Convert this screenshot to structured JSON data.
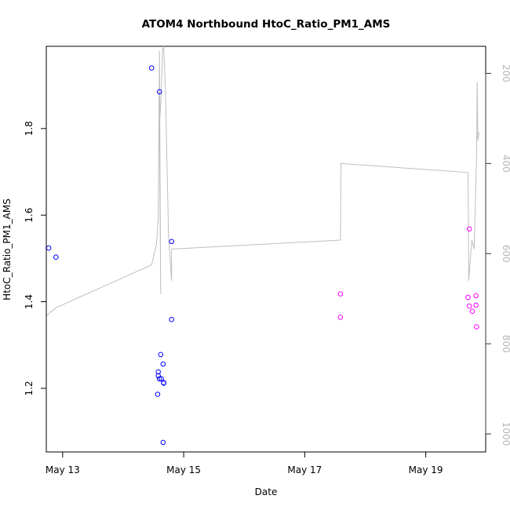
{
  "chart_data": {
    "type": "scatter",
    "title": "ATOM4 Northbound HtoC_Ratio_PM1_AMS",
    "xlabel": "Date",
    "ylabel": "HtoC_Ratio_PM1_AMS",
    "xlim": [
      12.73,
      19.99
    ],
    "ylim": [
      1.053,
      1.99
    ],
    "y2lim": [
      1040,
      140
    ],
    "x_ticks": [
      {
        "label": "May 13",
        "value": 13
      },
      {
        "label": "May 15",
        "value": 15
      },
      {
        "label": "May 17",
        "value": 17
      },
      {
        "label": "May 19",
        "value": 19
      }
    ],
    "y_ticks": [
      {
        "label": "1.2",
        "value": 1.2
      },
      {
        "label": "1.4",
        "value": 1.4
      },
      {
        "label": "1.6",
        "value": 1.6
      },
      {
        "label": "1.8",
        "value": 1.8
      }
    ],
    "y2_ticks": [
      {
        "label": "200",
        "value": 200
      },
      {
        "label": "400",
        "value": 400
      },
      {
        "label": "600",
        "value": 600
      },
      {
        "label": "800",
        "value": 800
      },
      {
        "label": "1000",
        "value": 1000
      }
    ],
    "grid": false,
    "series": [
      {
        "color": "#0000ff",
        "marker": "open-circle",
        "points": [
          [
            12.77,
            1.524
          ],
          [
            12.89,
            1.503
          ],
          [
            14.47,
            1.94
          ],
          [
            14.6,
            1.885
          ],
          [
            14.8,
            1.539
          ],
          [
            14.8,
            1.359
          ],
          [
            14.62,
            1.278
          ],
          [
            14.66,
            1.256
          ],
          [
            14.58,
            1.238
          ],
          [
            14.58,
            1.229
          ],
          [
            14.6,
            1.222
          ],
          [
            14.63,
            1.222
          ],
          [
            14.67,
            1.213
          ],
          [
            14.67,
            1.212
          ],
          [
            14.57,
            1.186
          ],
          [
            14.66,
            1.075
          ]
        ]
      },
      {
        "color": "#ff00ff",
        "marker": "open-circle",
        "points": [
          [
            17.59,
            1.418
          ],
          [
            17.59,
            1.364
          ],
          [
            19.72,
            1.568
          ],
          [
            19.7,
            1.41
          ],
          [
            19.83,
            1.414
          ],
          [
            19.72,
            1.39
          ],
          [
            19.83,
            1.392
          ],
          [
            19.77,
            1.378
          ],
          [
            19.84,
            1.342
          ]
        ]
      },
      {
        "color": "#bebebe",
        "type": "line",
        "axis": "right",
        "points": [
          [
            12.74,
            737
          ],
          [
            12.89,
            720
          ],
          [
            14.47,
            625
          ],
          [
            14.55,
            580
          ],
          [
            14.58,
            520
          ],
          [
            14.6,
            150
          ],
          [
            14.62,
            690
          ],
          [
            14.6,
            320
          ],
          [
            14.63,
            240
          ],
          [
            14.65,
            150
          ],
          [
            14.67,
            140
          ],
          [
            14.7,
            250
          ],
          [
            14.75,
            560
          ],
          [
            14.78,
            620
          ],
          [
            14.8,
            660
          ],
          [
            14.8,
            590
          ],
          [
            17.59,
            570
          ],
          [
            17.6,
            400
          ],
          [
            19.7,
            420
          ],
          [
            19.71,
            660
          ],
          [
            19.76,
            570
          ],
          [
            19.8,
            590
          ],
          [
            19.84,
            380
          ],
          [
            19.85,
            220
          ],
          [
            19.86,
            350
          ],
          [
            19.88,
            330
          ]
        ]
      }
    ]
  }
}
